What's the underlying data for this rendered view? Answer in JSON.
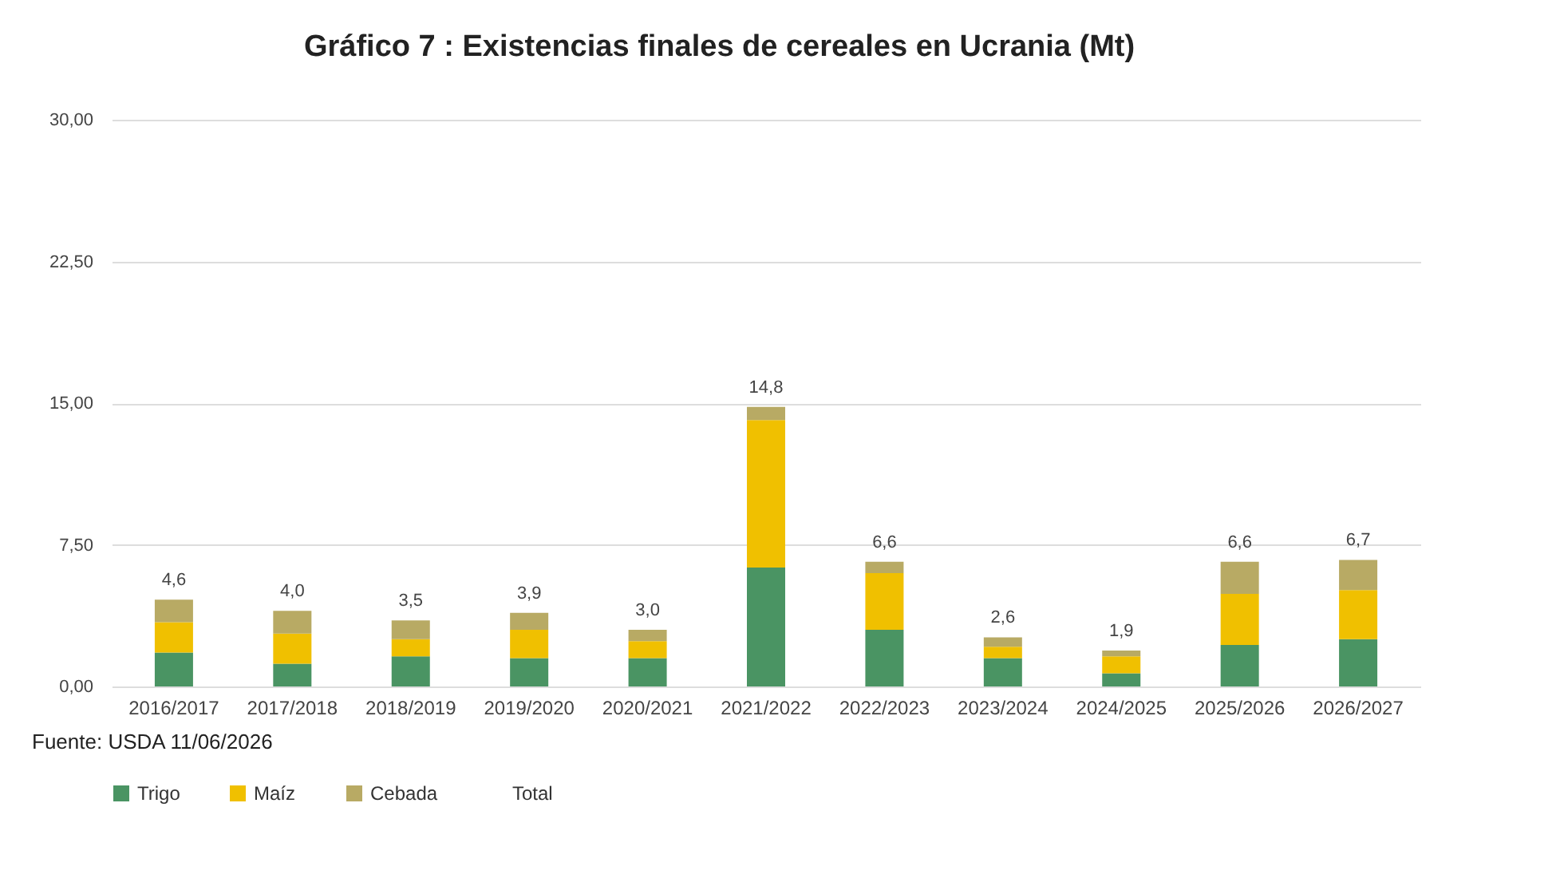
{
  "chart_data": {
    "type": "bar",
    "title": "Gráfico 7 : Existencias finales de cereales en Ucrania (Mt)",
    "categories": [
      "2016/2017",
      "2017/2018",
      "2018/2019",
      "2019/2020",
      "2020/2021",
      "2021/2022",
      "2022/2023",
      "2023/2024",
      "2024/2025",
      "2025/2026",
      "2026/2027"
    ],
    "stacked": true,
    "series": [
      {
        "name": "Trigo",
        "color": "#4a9463",
        "values": [
          1.8,
          1.2,
          1.6,
          1.5,
          1.5,
          6.3,
          3.0,
          1.5,
          0.7,
          2.2,
          2.5
        ]
      },
      {
        "name": "Maíz",
        "color": "#f0c000",
        "values": [
          1.6,
          1.6,
          0.9,
          1.5,
          0.9,
          7.8,
          3.0,
          0.6,
          0.9,
          2.7,
          2.6
        ]
      },
      {
        "name": "Cebada",
        "color": "#b8aa64",
        "values": [
          1.2,
          1.2,
          1.0,
          0.9,
          0.6,
          0.7,
          0.6,
          0.5,
          0.3,
          1.7,
          1.6
        ]
      },
      {
        "name": "Total",
        "values": [
          null,
          null,
          null,
          null,
          null,
          null,
          null,
          null,
          null,
          null,
          null
        ]
      }
    ],
    "totals": [
      "4,6",
      "4,0",
      "3,5",
      "3,9",
      "3,0",
      "14,8",
      "6,6",
      "2,6",
      "1,9",
      "6,6",
      "6,7"
    ],
    "ylim": [
      0,
      30
    ],
    "yticks": [
      {
        "value": 0,
        "label": "0,00"
      },
      {
        "value": 7.5,
        "label": "7,50"
      },
      {
        "value": 15,
        "label": "15,00"
      },
      {
        "value": 22.5,
        "label": "22,50"
      },
      {
        "value": 30,
        "label": "30,00"
      }
    ],
    "grid": "y",
    "legend": "bottom",
    "annotations": [
      "Fuente: USDA 11/06/2026"
    ]
  }
}
